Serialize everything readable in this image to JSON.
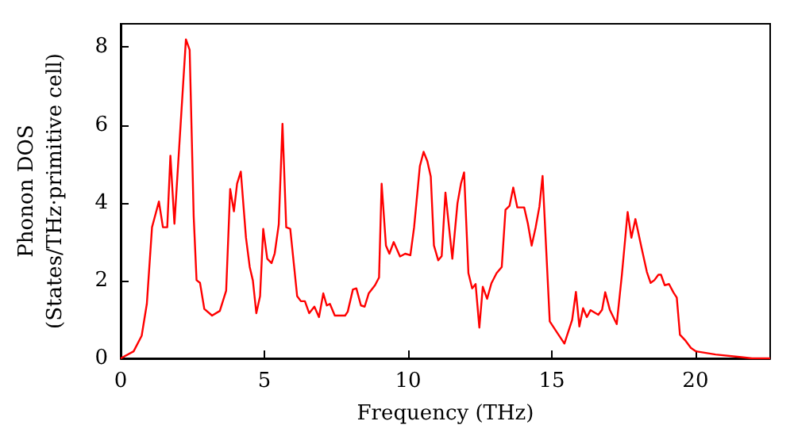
{
  "chart_data": {
    "type": "line",
    "xlabel": "Frequency (THz)",
    "ylabel": "Phonon DOS\n(States/THz·primitive cell)",
    "xlim": [
      0,
      22.6
    ],
    "ylim": [
      0,
      8.6
    ],
    "xticks": [
      0,
      5,
      10,
      15,
      20
    ],
    "yticks": [
      0,
      2,
      4,
      6,
      8
    ],
    "grid": false,
    "marker": "none",
    "line_style": "solid",
    "series": [
      {
        "color": "#ff0000",
        "x": [
          0,
          0.45,
          0.73,
          0.91,
          1.09,
          1.33,
          1.47,
          1.62,
          1.73,
          1.87,
          2.27,
          2.4,
          2.54,
          2.64,
          2.76,
          2.91,
          3.18,
          3.45,
          3.67,
          3.81,
          3.94,
          4.05,
          4.18,
          4.36,
          4.49,
          4.6,
          4.72,
          4.85,
          4.96,
          5.1,
          5.25,
          5.36,
          5.5,
          5.63,
          5.76,
          5.9,
          6.14,
          6.27,
          6.41,
          6.56,
          6.74,
          6.9,
          7.05,
          7.17,
          7.28,
          7.45,
          7.81,
          7.9,
          8.08,
          8.2,
          8.36,
          8.49,
          8.63,
          8.85,
          8.99,
          9.08,
          9.23,
          9.35,
          9.5,
          9.72,
          9.9,
          10.08,
          10.21,
          10.41,
          10.54,
          10.67,
          10.79,
          10.9,
          11.05,
          11.17,
          11.3,
          11.54,
          11.72,
          11.84,
          11.95,
          12.1,
          12.23,
          12.35,
          12.48,
          12.6,
          12.75,
          12.9,
          13.08,
          13.26,
          13.39,
          13.53,
          13.66,
          13.8,
          14.04,
          14.17,
          14.3,
          14.44,
          14.57,
          14.68,
          14.93,
          15.17,
          15.44,
          15.71,
          15.84,
          15.96,
          16.09,
          16.22,
          16.35,
          16.62,
          16.75,
          16.86,
          17.02,
          17.26,
          17.44,
          17.64,
          17.77,
          17.91,
          18.13,
          18.31,
          18.44,
          18.57,
          18.71,
          18.8,
          18.93,
          19.08,
          19.23,
          19.35,
          19.46,
          19.66,
          19.84,
          20.02,
          20.7,
          21.6,
          21.97,
          22.6
        ],
        "values": [
          0,
          0.18,
          0.58,
          1.4,
          3.37,
          4.03,
          3.37,
          3.37,
          5.21,
          3.46,
          8.2,
          7.93,
          3.65,
          2.01,
          1.94,
          1.27,
          1.1,
          1.22,
          1.74,
          4.35,
          3.78,
          4.49,
          4.8,
          3.1,
          2.35,
          2.0,
          1.16,
          1.6,
          3.33,
          2.56,
          2.45,
          2.7,
          3.44,
          6.03,
          3.37,
          3.33,
          1.6,
          1.47,
          1.47,
          1.16,
          1.33,
          1.06,
          1.67,
          1.36,
          1.4,
          1.1,
          1.1,
          1.2,
          1.77,
          1.8,
          1.36,
          1.33,
          1.67,
          1.88,
          2.08,
          4.49,
          2.9,
          2.69,
          2.99,
          2.62,
          2.69,
          2.65,
          3.37,
          4.94,
          5.31,
          5.07,
          4.67,
          2.9,
          2.52,
          2.63,
          4.26,
          2.56,
          3.99,
          4.49,
          4.78,
          2.19,
          1.8,
          1.91,
          0.79,
          1.84,
          1.53,
          1.93,
          2.19,
          2.35,
          3.82,
          3.92,
          4.39,
          3.88,
          3.88,
          3.46,
          2.9,
          3.37,
          3.9,
          4.69,
          0.95,
          0.68,
          0.38,
          0.99,
          1.71,
          0.82,
          1.29,
          1.06,
          1.24,
          1.12,
          1.25,
          1.7,
          1.25,
          0.88,
          2.15,
          3.76,
          3.1,
          3.58,
          2.82,
          2.22,
          1.94,
          2.01,
          2.15,
          2.15,
          1.88,
          1.91,
          1.7,
          1.56,
          0.61,
          0.45,
          0.27,
          0.18,
          0.1,
          0.03,
          0,
          0
        ]
      }
    ]
  }
}
